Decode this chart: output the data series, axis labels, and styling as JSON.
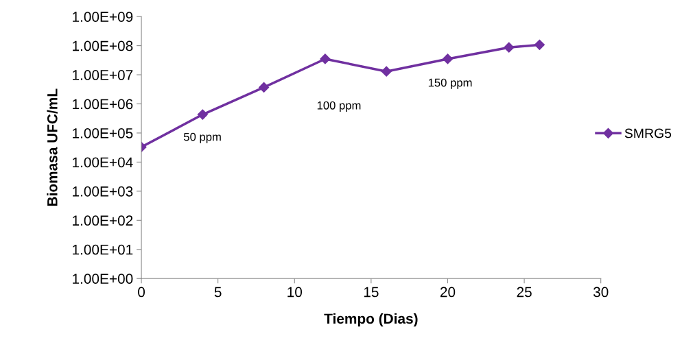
{
  "chart_data": {
    "type": "line",
    "xlabel": "Tiempo (Dias)",
    "ylabel": "Biomasa UFC/mL",
    "x": [
      0,
      4,
      8,
      12,
      16,
      20,
      24,
      26
    ],
    "series": [
      {
        "name": "SMRG5",
        "color": "#7030a0",
        "values": [
          33000,
          430000,
          3700000,
          35000000,
          13000000,
          35000000,
          87000000,
          107000000
        ]
      }
    ],
    "log": "y",
    "xlim": [
      0,
      30
    ],
    "xticks": [
      0,
      5,
      10,
      15,
      20,
      25,
      30
    ],
    "ylim": [
      1,
      1000000000
    ],
    "yticks": [
      {
        "value": 1,
        "label": "1.00E+00"
      },
      {
        "value": 10,
        "label": "1.00E+01"
      },
      {
        "value": 100,
        "label": "1.00E+02"
      },
      {
        "value": 1000,
        "label": "1.00E+03"
      },
      {
        "value": 10000,
        "label": "1.00E+04"
      },
      {
        "value": 100000,
        "label": "1.00E+05"
      },
      {
        "value": 1000000,
        "label": "1.00E+06"
      },
      {
        "value": 10000000,
        "label": "1.00E+07"
      },
      {
        "value": 100000000,
        "label": "1.00E+08"
      },
      {
        "value": 1000000000,
        "label": "1.00E+09"
      }
    ],
    "annotations": [
      "50 ppm",
      "100 ppm",
      "150 ppm"
    ],
    "grid": false,
    "legend": "right",
    "marker": "diamond",
    "line_style": "solid"
  }
}
